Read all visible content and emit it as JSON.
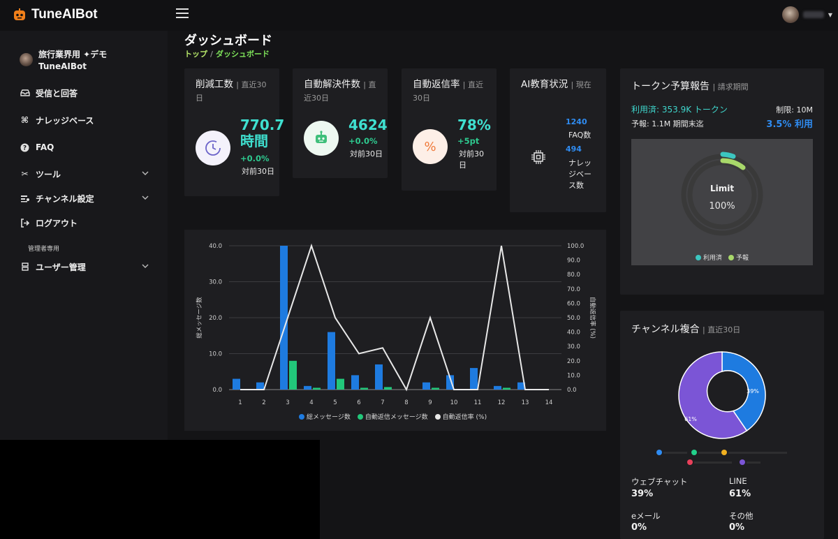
{
  "app": {
    "name": "TuneAIBot"
  },
  "sidebar": {
    "org_line1": "旅行業界用 ✦デモ",
    "org_line2": "TuneAIBot",
    "items": [
      {
        "label": "受信と回答",
        "icon": "inbox-icon"
      },
      {
        "label": "ナレッジベース",
        "icon": "knowledge-icon"
      },
      {
        "label": "FAQ",
        "icon": "help-icon"
      },
      {
        "label": "ツール",
        "icon": "tools-icon"
      },
      {
        "label": "チャンネル設定",
        "icon": "channel-icon"
      },
      {
        "label": "ログアウト",
        "icon": "logout-icon"
      }
    ],
    "section_admin": "管理者専用",
    "admin_items": [
      {
        "label": "ユーザー管理",
        "icon": "users-icon"
      }
    ]
  },
  "page": {
    "title": "ダッシュボード",
    "breadcrumb_home": "トップ",
    "breadcrumb_sep": "/",
    "breadcrumb_current": "ダッシュボード"
  },
  "stats": [
    {
      "title": "削減工数",
      "sub": "| 直近30日",
      "value": "770.7時間",
      "change": "+0.0%",
      "compare": "対前30日",
      "icon": "clock-icon"
    },
    {
      "title": "自動解決件数",
      "sub": "| 直近30日",
      "value": "4624",
      "change": "+0.0%",
      "compare": "対前30日",
      "icon": "robot-icon"
    },
    {
      "title": "自動返信率",
      "sub": "| 直近30日",
      "value": "78%",
      "change": "+5pt",
      "compare": "対前30日",
      "icon": "percent-icon"
    },
    {
      "title": "AI教育状況",
      "sub": "| 現在",
      "faq_count": "1240",
      "faq_label": "FAQ数",
      "kb_count": "494",
      "kb_label": "ナレッジベース数",
      "icon": "chip-icon"
    }
  ],
  "budget": {
    "title": "トークン予算報告",
    "sub": "| 請求期間",
    "used": "利用済: 353.9K トークン",
    "limit": "制限: 10M",
    "forecast": "予報: 1.1M 期間末迄",
    "usage_pct": "3.5% 利用",
    "gauge_label": "Limit",
    "gauge_value": "100%",
    "legend_used": "利用済",
    "legend_forecast": "予報",
    "colors": {
      "used": "#3cc6c0",
      "forecast": "#a8d86a"
    }
  },
  "channels": {
    "title": "チャンネル複合",
    "sub": "| 直近30日",
    "web_label": "ウェブチャット",
    "web_value": "39%",
    "line_label": "LINE",
    "line_value": "61%",
    "email_label": "eメール",
    "email_value": "0%",
    "other_label": "その他",
    "other_value": "0%",
    "donut_web_label": "39%",
    "donut_line_label": "61%"
  },
  "chart_data": {
    "type": "bar",
    "categories": [
      "1",
      "2",
      "3",
      "4",
      "5",
      "6",
      "7",
      "8",
      "9",
      "10",
      "11",
      "12",
      "13",
      "14"
    ],
    "series": [
      {
        "name": "総メッセージ数",
        "type": "bar",
        "axis": "left",
        "color": "#1e7be0",
        "values": [
          3,
          2,
          40,
          1,
          16,
          4,
          7,
          0,
          2,
          4,
          6,
          1,
          2,
          0
        ]
      },
      {
        "name": "自動返信メッセージ数",
        "type": "bar",
        "axis": "left",
        "color": "#22c77a",
        "values": [
          0,
          0,
          8,
          0.5,
          3,
          0.5,
          0.7,
          0,
          0.5,
          0,
          0,
          0.5,
          0,
          0
        ]
      },
      {
        "name": "自動返信率 (%)",
        "type": "line",
        "axis": "right",
        "color": "#e8e8e8",
        "values": [
          0,
          0,
          50,
          100,
          50,
          25,
          29,
          0,
          50,
          0,
          0,
          100,
          0,
          0
        ]
      }
    ],
    "ylabel": "総メッセージ数",
    "y2label": "自動返信率 (%)",
    "ylim": [
      0,
      40
    ],
    "y2lim": [
      0,
      100
    ],
    "yticks": [
      "0.0",
      "10.0",
      "20.0",
      "30.0",
      "40.0"
    ],
    "y2ticks": [
      "0.0",
      "10.0",
      "20.0",
      "30.0",
      "40.0",
      "50.0",
      "60.0",
      "70.0",
      "80.0",
      "90.0",
      "100.0"
    ],
    "grid": true,
    "legend": "bottom"
  }
}
